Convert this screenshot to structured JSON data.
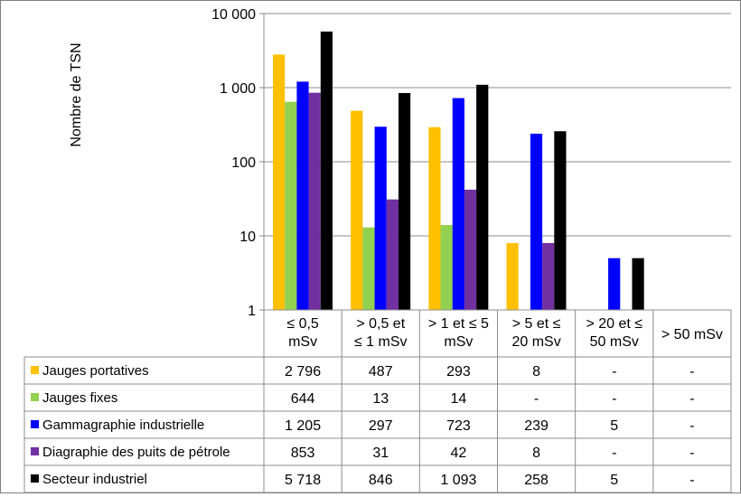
{
  "chart_data": {
    "type": "bar",
    "title": "",
    "ylabel": "Nombre de TSN",
    "yscale": "log",
    "ylim": [
      1,
      10000
    ],
    "grid": true,
    "yticks": [
      {
        "value": 1,
        "label": "1"
      },
      {
        "value": 10,
        "label": "10"
      },
      {
        "value": 100,
        "label": "100"
      },
      {
        "value": 1000,
        "label": "1 000"
      },
      {
        "value": 10000,
        "label": "10 000"
      }
    ],
    "categories": [
      [
        "≤ 0,5",
        "mSv"
      ],
      [
        "> 0,5 et",
        "≤ 1 mSv"
      ],
      [
        "> 1 et ≤ 5",
        "mSv"
      ],
      [
        "> 5 et ≤",
        "20 mSv"
      ],
      [
        "> 20 et ≤",
        "50 mSv"
      ],
      [
        "> 50 mSv"
      ]
    ],
    "series": [
      {
        "name": "Jauges portatives",
        "color": "#FFC000",
        "values": [
          2796,
          487,
          293,
          8,
          null,
          null
        ],
        "labels": [
          "2 796",
          "487",
          "293",
          "8",
          "-",
          "-"
        ]
      },
      {
        "name": "Jauges fixes",
        "color": "#92D050",
        "values": [
          644,
          13,
          14,
          null,
          null,
          null
        ],
        "labels": [
          "644",
          "13",
          "14",
          "-",
          "-",
          "-"
        ]
      },
      {
        "name": "Gammagraphie industrielle",
        "color": "#0000FF",
        "values": [
          1205,
          297,
          723,
          239,
          5,
          null
        ],
        "labels": [
          "1 205",
          "297",
          "723",
          "239",
          "5",
          "-"
        ]
      },
      {
        "name": "Diagraphie des puits de pétrole",
        "color": "#7030A0",
        "values": [
          853,
          31,
          42,
          8,
          null,
          null
        ],
        "labels": [
          "853",
          "31",
          "42",
          "8",
          "-",
          "-"
        ]
      },
      {
        "name": "Secteur industriel",
        "color": "#000000",
        "values": [
          5718,
          846,
          1093,
          258,
          5,
          null
        ],
        "labels": [
          "5 718",
          "846",
          "1 093",
          "258",
          "5",
          "-"
        ]
      }
    ]
  }
}
